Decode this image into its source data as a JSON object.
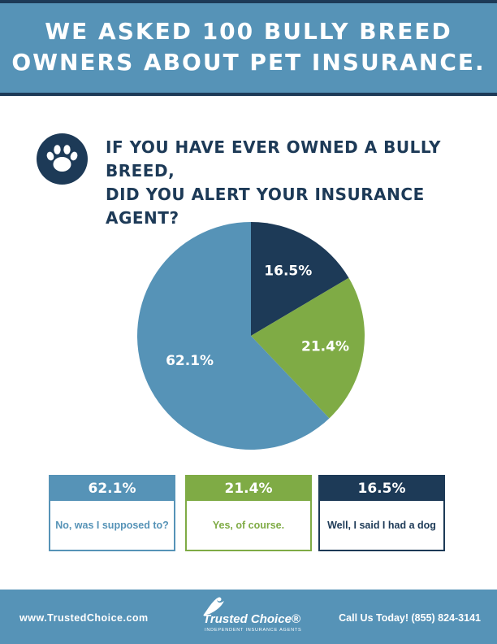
{
  "header": {
    "line1": "WE ASKED 100 BULLY BREED",
    "line2": "OWNERS ABOUT PET INSURANCE."
  },
  "question": {
    "line1": "IF YOU HAVE EVER OWNED A BULLY BREED,",
    "line2": "DID YOU ALERT YOUR INSURANCE AGENT?"
  },
  "icons": {
    "question_icon": "paw-icon",
    "logo_icon": "eagle-icon"
  },
  "colors": {
    "light_blue": "#5693b7",
    "green": "#7fab45",
    "navy": "#1d3a57"
  },
  "chart_data": {
    "type": "pie",
    "slices": [
      {
        "label": "Well, I said I had a dog",
        "value": 16.5,
        "display": "16.5%",
        "color": "#1d3a57"
      },
      {
        "label": "Yes, of course.",
        "value": 21.4,
        "display": "21.4%",
        "color": "#7fab45"
      },
      {
        "label": "No, was I supposed to?",
        "value": 62.1,
        "display": "62.1%",
        "color": "#5693b7"
      }
    ]
  },
  "legend": [
    {
      "value": "62.1%",
      "text": "No, was I supposed to?",
      "color": "#5693b7"
    },
    {
      "value": "21.4%",
      "text": "Yes, of course.",
      "color": "#7fab45"
    },
    {
      "value": "16.5%",
      "text": "Well, I said I had a dog",
      "color": "#1d3a57"
    }
  ],
  "footer": {
    "website": "www.TrustedChoice.com",
    "brand": "Trusted Choice®",
    "tagline": "INDEPENDENT INSURANCE AGENTS",
    "phone": "Call Us Today! (855) 824-3141"
  }
}
